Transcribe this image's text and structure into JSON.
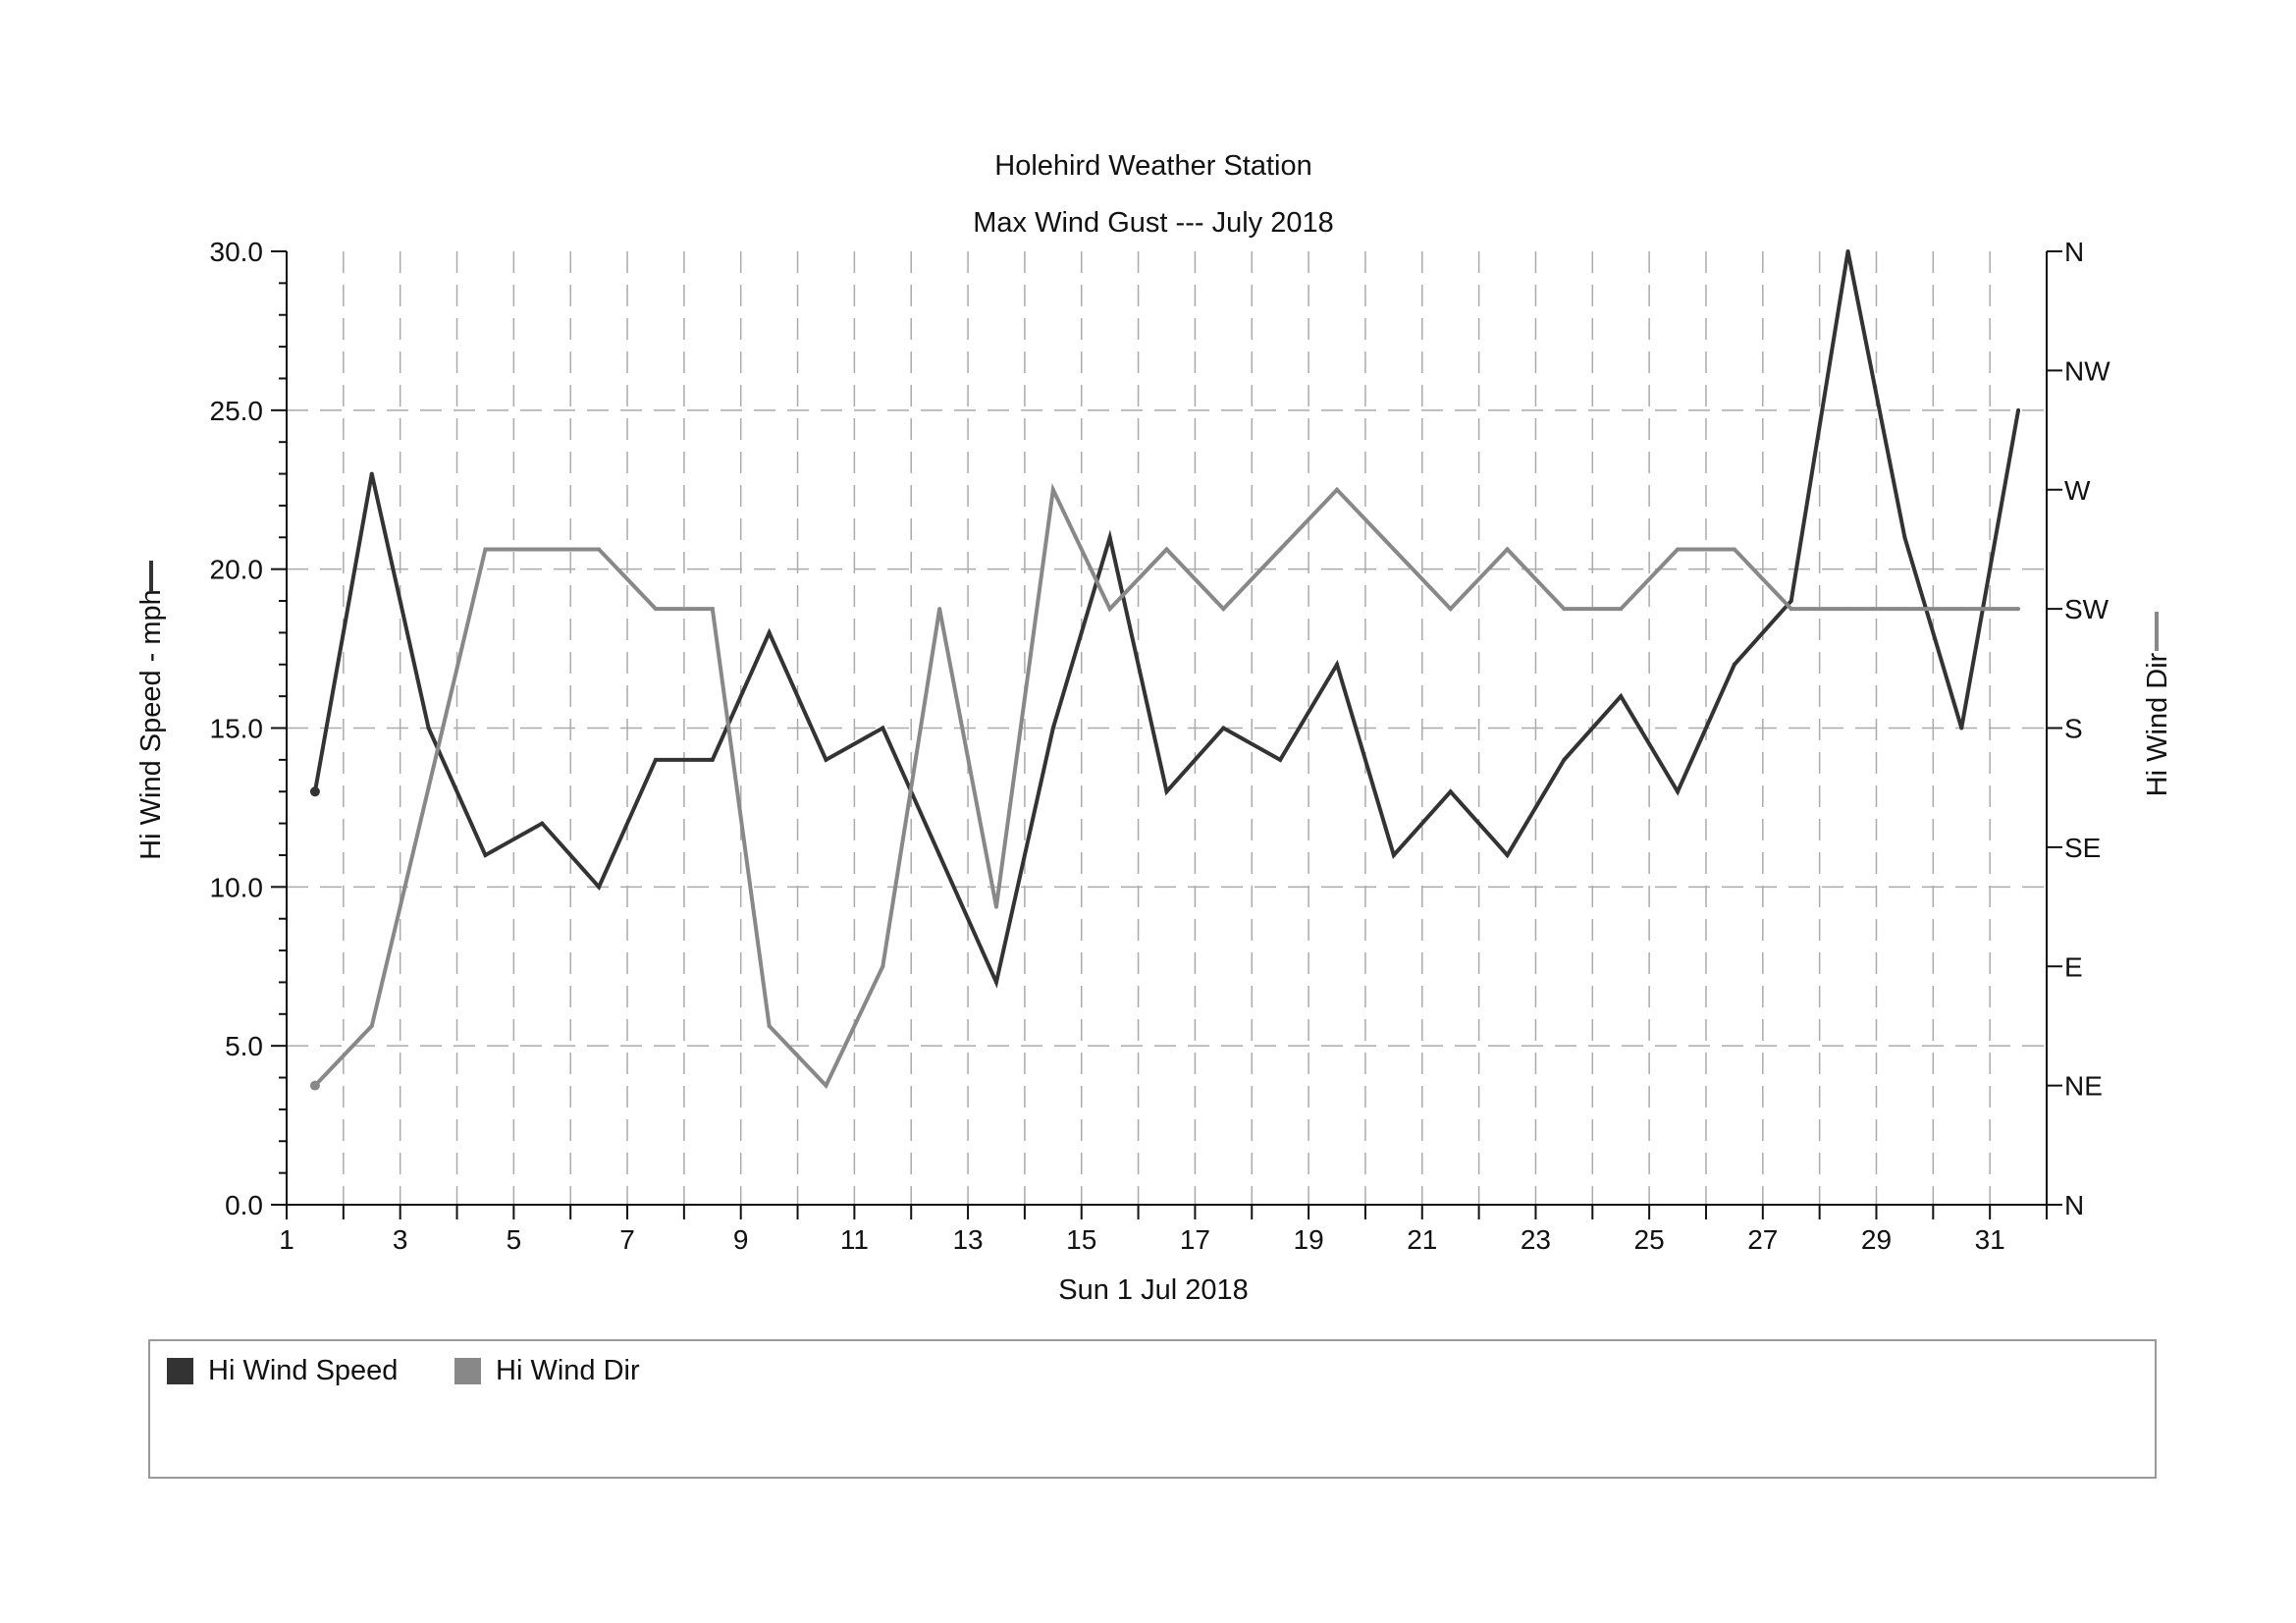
{
  "chart_data": {
    "type": "line",
    "title": "Holehird Weather Station",
    "subtitle": "Max Wind Gust --- July 2018",
    "xlabel": "Sun 1 Jul 2018",
    "ylabel_left": "Hi Wind Speed - mph",
    "ylabel_right": "Hi Wind Dir",
    "x_tick_labels": [
      "1",
      "3",
      "5",
      "7",
      "9",
      "11",
      "13",
      "15",
      "17",
      "19",
      "21",
      "23",
      "25",
      "27",
      "29",
      "31"
    ],
    "x_ticks": [
      1,
      3,
      5,
      7,
      9,
      11,
      13,
      15,
      17,
      19,
      21,
      23,
      25,
      27,
      29,
      31
    ],
    "xlim": [
      1,
      32
    ],
    "ylim_left": [
      0,
      30
    ],
    "y_left_ticks": [
      0,
      5,
      10,
      15,
      20,
      25,
      30
    ],
    "y_left_tick_labels": [
      "0.0",
      "5.0",
      "10.0",
      "15.0",
      "20.0",
      "25.0",
      "30.0"
    ],
    "ylim_right": [
      0,
      360
    ],
    "y_right_ticks": [
      0,
      45,
      90,
      135,
      180,
      225,
      270,
      315,
      360
    ],
    "y_right_tick_labels": [
      "N",
      "NE",
      "E",
      "SE",
      "S",
      "SW",
      "W",
      "NW",
      "N"
    ],
    "grid": true,
    "legend_position": "bottom",
    "x": [
      1,
      2,
      3,
      4,
      5,
      6,
      7,
      8,
      9,
      10,
      11,
      12,
      13,
      14,
      15,
      16,
      17,
      18,
      19,
      20,
      21,
      22,
      23,
      24,
      25,
      26,
      27,
      28,
      29,
      30,
      31
    ],
    "series": [
      {
        "name": "Hi Wind Speed",
        "axis": "left",
        "color": "#333333",
        "values": [
          13,
          23,
          15,
          11,
          12,
          10,
          14,
          14,
          18,
          14,
          15,
          11,
          7,
          15,
          21,
          13,
          15,
          14,
          17,
          11,
          13,
          11,
          14,
          16,
          13,
          17,
          19,
          30,
          21,
          15,
          25
        ]
      },
      {
        "name": "Hi Wind Dir",
        "axis": "right",
        "color": "#888888",
        "values": [
          45,
          67.5,
          157.5,
          247.5,
          247.5,
          247.5,
          225,
          225,
          67.5,
          45,
          90,
          225,
          112.5,
          270,
          225,
          247.5,
          225,
          247.5,
          270,
          247.5,
          225,
          247.5,
          225,
          225,
          247.5,
          247.5,
          225,
          225,
          225,
          225,
          225
        ]
      }
    ]
  }
}
